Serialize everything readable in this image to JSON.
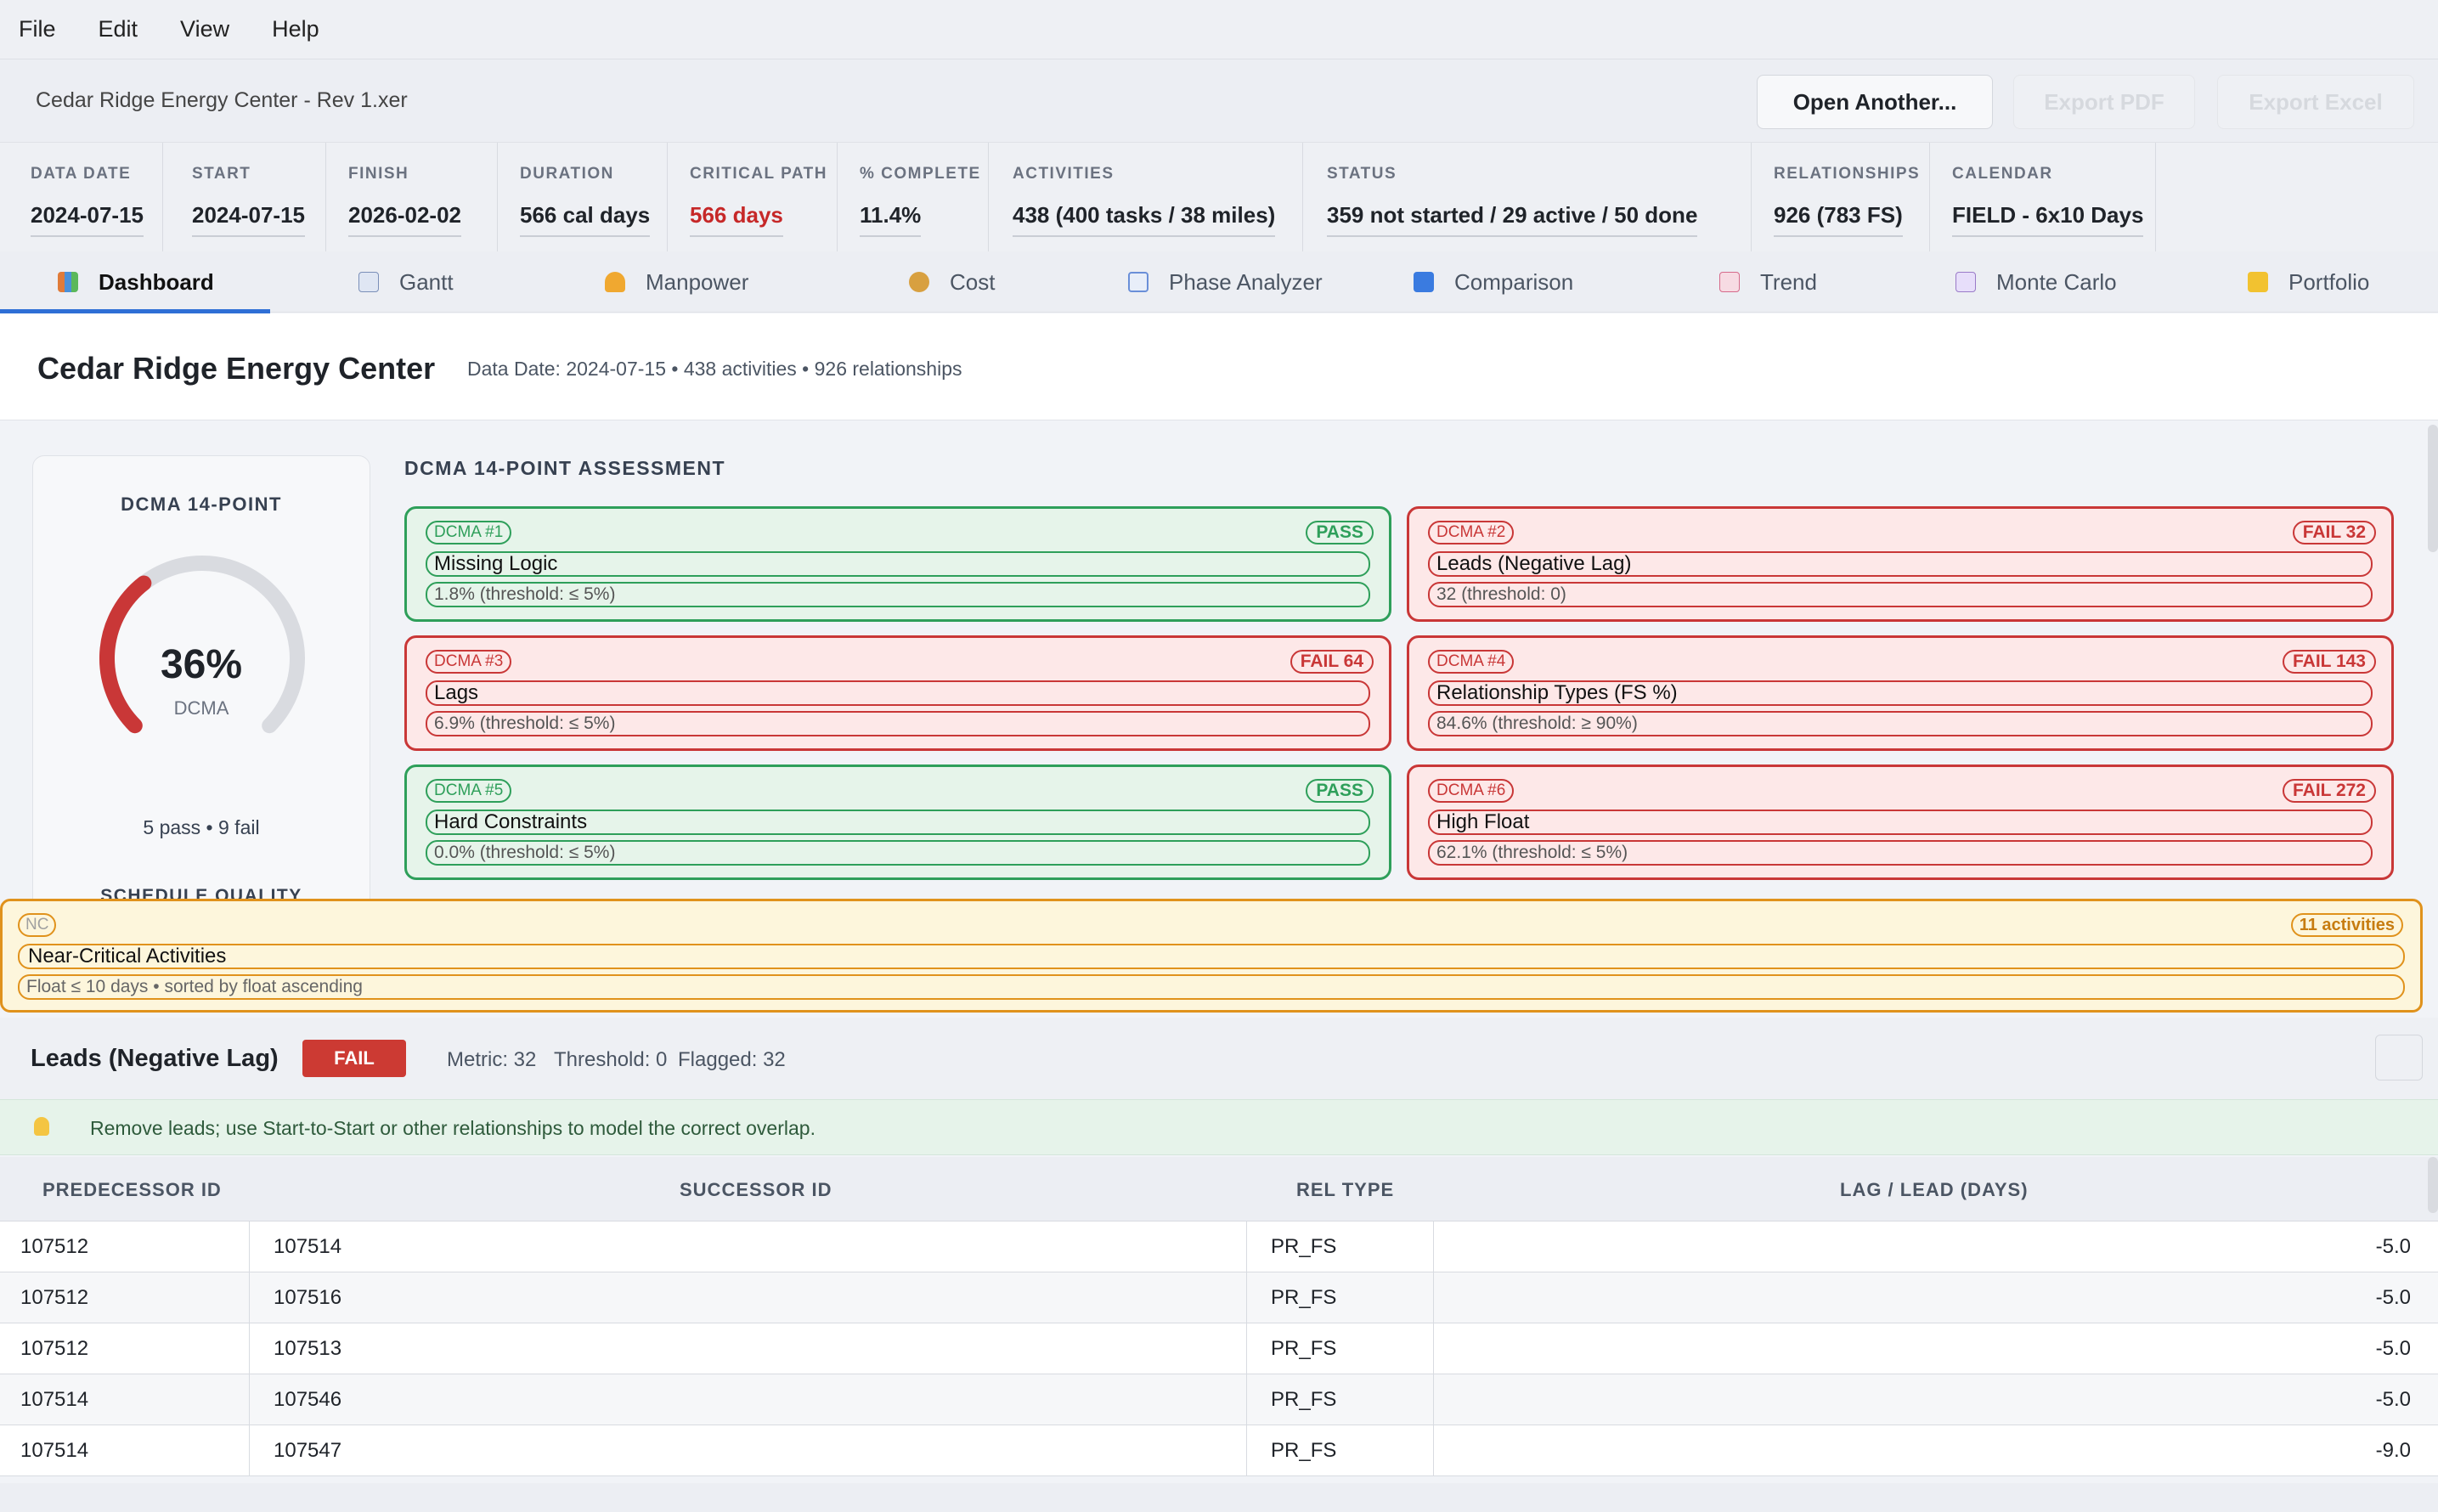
{
  "menu": [
    "File",
    "Edit",
    "View",
    "Help"
  ],
  "titlebar": {
    "file": "Cedar Ridge Energy Center - Rev 1.xer",
    "open_label": "Open Another...",
    "pdf_label": "Export PDF",
    "excel_label": "Export Excel"
  },
  "stats": [
    {
      "label": "DATA DATE",
      "value": "2024-07-15"
    },
    {
      "label": "START",
      "value": "2024-07-15"
    },
    {
      "label": "FINISH",
      "value": "2026-02-02"
    },
    {
      "label": "DURATION",
      "value": "566 cal days"
    },
    {
      "label": "CRITICAL PATH",
      "value": "566 days"
    },
    {
      "label": "% COMPLETE",
      "value": "11.4%"
    },
    {
      "label": "ACTIVITIES",
      "value": "438  (400 tasks / 38 miles)"
    },
    {
      "label": "STATUS",
      "value": "359 not started  /  29 active  /  50 done"
    },
    {
      "label": "RELATIONSHIPS",
      "value": "926  (783 FS)"
    },
    {
      "label": "CALENDAR",
      "value": "FIELD - 6x10 Days"
    }
  ],
  "tabs": [
    {
      "label": "Dashboard",
      "icon": "bar-chart-icon",
      "color": "#e07b39"
    },
    {
      "label": "Gantt",
      "icon": "line-chart-icon",
      "color": "#7a8fb8"
    },
    {
      "label": "Manpower",
      "icon": "worker-icon",
      "color": "#f0a830"
    },
    {
      "label": "Cost",
      "icon": "money-bag-icon",
      "color": "#d8a040"
    },
    {
      "label": "Phase Analyzer",
      "icon": "calendar-icon",
      "color": "#6a8fd8"
    },
    {
      "label": "Comparison",
      "icon": "shuffle-icon",
      "color": "#3a7be0"
    },
    {
      "label": "Trend",
      "icon": "trend-down-icon",
      "color": "#d66a8a"
    },
    {
      "label": "Monte Carlo",
      "icon": "dice-icon",
      "color": "#9a7ac8"
    },
    {
      "label": "Portfolio",
      "icon": "folder-icon",
      "color": "#f2c230"
    }
  ],
  "header": {
    "title": "Cedar Ridge Energy Center",
    "meta": "Data Date: 2024-07-15  •  438 activities  •  926 relationships"
  },
  "scorecard": {
    "title": "DCMA 14-POINT",
    "percent": "36%",
    "percent_value": 36,
    "sub": "DCMA",
    "pass_fail": "5 pass  •  9 fail",
    "next_section": "SCHEDULE QUALITY"
  },
  "assessment": {
    "title": "DCMA 14-POINT ASSESSMENT",
    "cards": [
      {
        "tag": "DCMA #1",
        "result": "PASS",
        "status": "pass",
        "name": "Missing Logic",
        "detail": "1.8%  (threshold: ≤ 5%)"
      },
      {
        "tag": "DCMA #2",
        "result": "FAIL  32",
        "status": "fail",
        "name": "Leads (Negative Lag)",
        "detail": "32  (threshold: 0)"
      },
      {
        "tag": "DCMA #3",
        "result": "FAIL  64",
        "status": "fail",
        "name": "Lags",
        "detail": "6.9%  (threshold: ≤ 5%)"
      },
      {
        "tag": "DCMA #4",
        "result": "FAIL  143",
        "status": "fail",
        "name": "Relationship Types (FS %)",
        "detail": "84.6%  (threshold: ≥ 90%)"
      },
      {
        "tag": "DCMA #5",
        "result": "PASS",
        "status": "pass",
        "name": "Hard Constraints",
        "detail": "0.0%  (threshold: ≤ 5%)"
      },
      {
        "tag": "DCMA #6",
        "result": "FAIL  272",
        "status": "fail",
        "name": "High Float",
        "detail": "62.1%  (threshold: ≤ 5%)"
      }
    ]
  },
  "near_critical": {
    "tag": "NC",
    "count": "11 activities",
    "name": "Near-Critical Activities",
    "detail": "Float ≤ 10 days  •  sorted by float ascending"
  },
  "detail": {
    "title": "Leads (Negative Lag)",
    "badge": "FAIL",
    "metric": "Metric: 32",
    "threshold": "Threshold: 0",
    "flagged": "Flagged: 32",
    "tip": "Remove leads; use Start-to-Start or other relationships to model the correct overlap."
  },
  "table": {
    "headers": [
      "PREDECESSOR ID",
      "SUCCESSOR ID",
      "REL TYPE",
      "LAG / LEAD (DAYS)"
    ],
    "rows": [
      [
        "107512",
        "107514",
        "PR_FS",
        "-5.0"
      ],
      [
        "107512",
        "107516",
        "PR_FS",
        "-5.0"
      ],
      [
        "107512",
        "107513",
        "PR_FS",
        "-5.0"
      ],
      [
        "107514",
        "107546",
        "PR_FS",
        "-5.0"
      ],
      [
        "107514",
        "107547",
        "PR_FS",
        "-9.0"
      ]
    ]
  }
}
